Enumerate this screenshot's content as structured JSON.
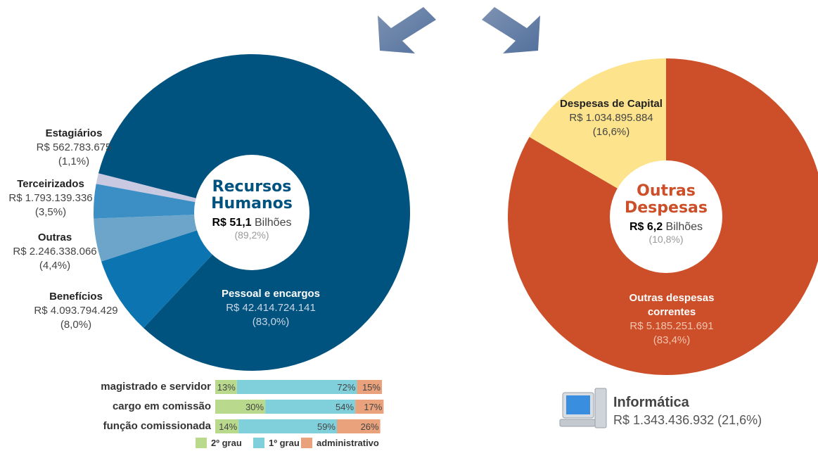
{
  "chart_data": [
    {
      "type": "pie",
      "center_title": "Recursos Humanos",
      "center_value": "R$ 51,1",
      "center_unit": "Bilhões",
      "center_share": "(89,2%)",
      "categories": [
        "Estagiários",
        "Pessoal e encargos",
        "Benefícios",
        "Outras",
        "Terceirizados"
      ],
      "values": [
        1.1,
        83.0,
        8.0,
        4.4,
        3.5
      ],
      "value_labels": [
        "(1,1%)",
        "(83,0%)",
        "(8,0%)",
        "(4,4%)",
        "(3,5%)"
      ],
      "amount_labels": [
        "R$ 562.783.675",
        "R$ 42.414.724.141",
        "R$ 4.093.794.429",
        "R$ 2.246.338.066",
        "R$ 1.793.139.336"
      ],
      "colors": [
        "#c9c9e2",
        "#00527f",
        "#0b74b1",
        "#6ca5c9",
        "#3b8fc5"
      ]
    },
    {
      "type": "pie",
      "center_title": "Outras Despesas",
      "center_value": "R$ 6,2",
      "center_unit": "Bilhões",
      "center_share": "(10,8%)",
      "categories": [
        "Outras despesas correntes",
        "Despesas de Capital"
      ],
      "values": [
        83.4,
        16.6
      ],
      "value_labels": [
        "(83,4%)",
        "(16,6%)"
      ],
      "amount_labels": [
        "R$ 5.185.251.691",
        "R$ 1.034.895.884"
      ],
      "colors": [
        "#cc4f29",
        "#fde38c"
      ]
    },
    {
      "type": "stacked_bar",
      "categories": [
        "magistrado e servidor",
        "cargo em comissão",
        "função comissionada"
      ],
      "xlim": [
        0,
        100
      ],
      "series": [
        {
          "name": "2º grau",
          "color": "#b9da8c",
          "values": [
            13,
            30,
            14
          ],
          "value_labels": [
            "13%",
            "30%",
            "14%"
          ]
        },
        {
          "name": "1º grau",
          "color": "#80d0dc",
          "values": [
            72,
            54,
            59
          ],
          "value_labels": [
            "72%",
            "54%",
            "59%"
          ]
        },
        {
          "name": "administrativo",
          "color": "#e9a27c",
          "values": [
            15,
            17,
            26
          ],
          "value_labels": [
            "15%",
            "17%",
            "26%"
          ]
        }
      ]
    }
  ],
  "informatica": {
    "title": "Informática",
    "label": "R$ 1.343.436.932 (21,6%)"
  }
}
